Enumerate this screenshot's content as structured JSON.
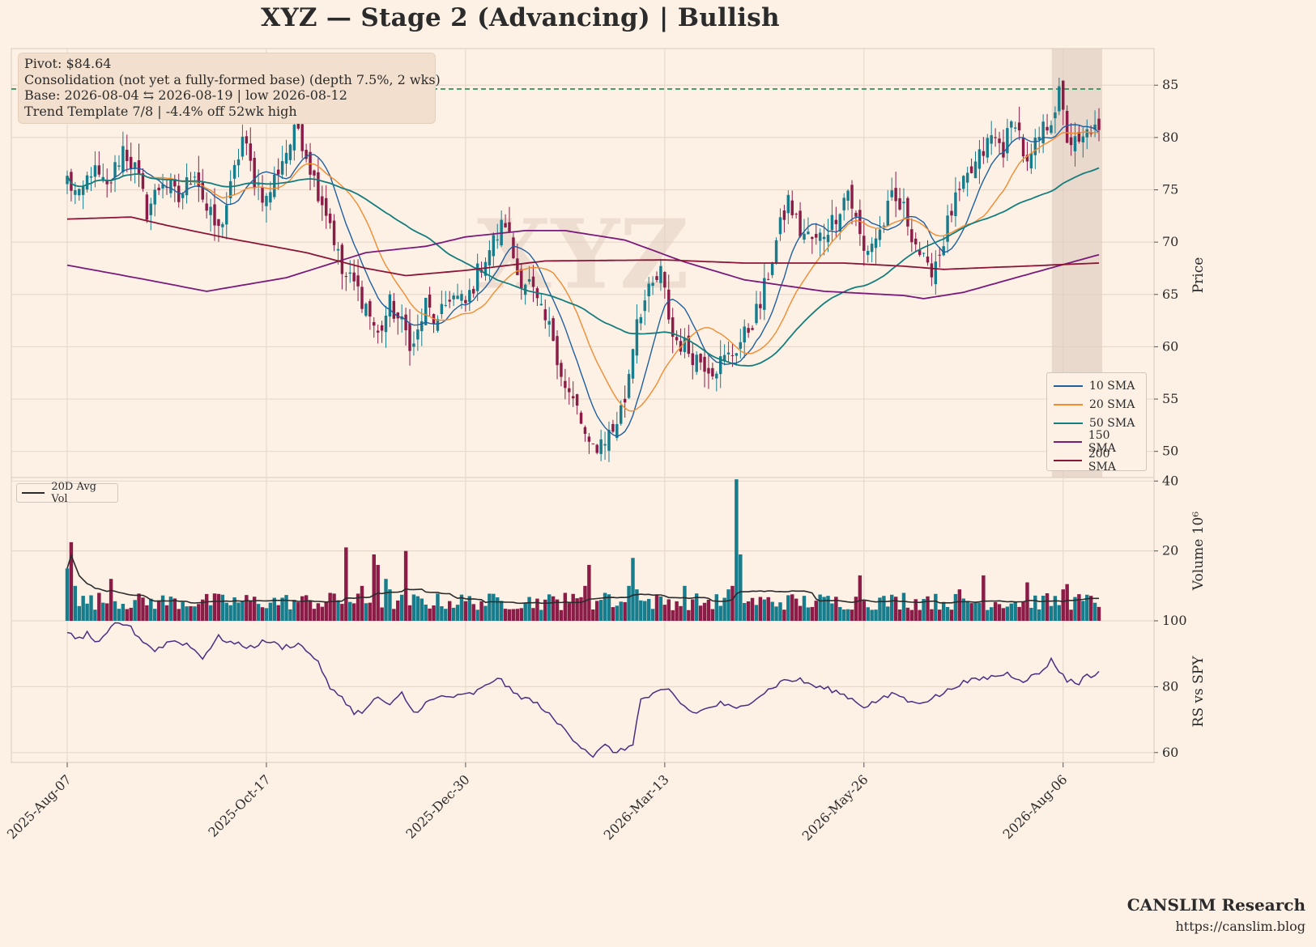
{
  "title": "XYZ  —  Stage 2 (Advancing)  |  Bullish",
  "watermark": "XYZ",
  "info": {
    "line1": "Pivot: $84.64",
    "line2": "Consolidation (not yet a fully-formed base)  (depth 7.5%, 2 wks)",
    "line3": "Base: 2026-08-04 ⇆ 2026-08-19  |  low 2026-08-12",
    "line4": "Trend Template 7/8  |  -4.4% off 52wk high"
  },
  "brand": {
    "name": "CANSLIM Research",
    "url": "https://canslim.blog"
  },
  "colors": {
    "background": "#fdf1e6",
    "grid": "#e6d9cc",
    "up": "#177c8c",
    "down": "#8a1c47",
    "sma10": "#1f5f9e",
    "sma20": "#f28b30",
    "sma50": "#147d7d",
    "sma150": "#7a1a7a",
    "sma200": "#8c1436",
    "avgvol": "#2b2b2b",
    "rs": "#4b2e83",
    "pivot": "#1e8c4e",
    "base_shade": "#dfcdc0"
  },
  "chart_data": [
    {
      "id": "price",
      "type": "candlestick",
      "ylabel": "Price",
      "ylim": [
        47.5,
        88.5
      ],
      "yticks": [
        50,
        55,
        60,
        65,
        70,
        75,
        80,
        85
      ],
      "x_tick_labels": [
        "2025-Aug-07",
        "2025-Oct-17",
        "2025-Dec-30",
        "2026-Mar-13",
        "2026-May-26",
        "2026-Aug-06"
      ],
      "x_tick_index": [
        0,
        50,
        100,
        150,
        200,
        250
      ],
      "n_bars": 260,
      "pivot": 84.64,
      "base_shade_index": [
        248,
        259
      ],
      "anchors": [
        [
          0,
          76
        ],
        [
          3,
          74
        ],
        [
          6,
          77
        ],
        [
          10,
          75
        ],
        [
          14,
          79
        ],
        [
          17,
          77
        ],
        [
          20,
          73
        ],
        [
          24,
          76
        ],
        [
          28,
          74
        ],
        [
          32,
          77
        ],
        [
          35,
          73
        ],
        [
          38,
          71
        ],
        [
          41,
          75
        ],
        [
          44,
          80
        ],
        [
          47,
          76
        ],
        [
          50,
          74
        ],
        [
          54,
          78
        ],
        [
          58,
          81
        ],
        [
          62,
          76
        ],
        [
          66,
          72
        ],
        [
          69,
          67
        ],
        [
          72,
          66
        ],
        [
          75,
          64
        ],
        [
          78,
          61
        ],
        [
          81,
          64
        ],
        [
          84,
          62
        ],
        [
          87,
          60
        ],
        [
          90,
          64
        ],
        [
          93,
          62
        ],
        [
          96,
          65
        ],
        [
          100,
          64
        ],
        [
          104,
          68
        ],
        [
          107,
          70
        ],
        [
          110,
          72
        ],
        [
          113,
          67
        ],
        [
          116,
          66
        ],
        [
          119,
          63
        ],
        [
          122,
          61
        ],
        [
          125,
          56
        ],
        [
          128,
          54
        ],
        [
          131,
          50
        ],
        [
          134,
          51
        ],
        [
          137,
          52
        ],
        [
          140,
          55
        ],
        [
          143,
          63
        ],
        [
          146,
          65
        ],
        [
          149,
          67
        ],
        [
          152,
          61
        ],
        [
          155,
          60
        ],
        [
          158,
          59
        ],
        [
          162,
          58
        ],
        [
          166,
          59
        ],
        [
          170,
          61
        ],
        [
          174,
          64
        ],
        [
          178,
          70
        ],
        [
          181,
          74
        ],
        [
          184,
          71
        ],
        [
          188,
          70
        ],
        [
          192,
          72
        ],
        [
          196,
          75
        ],
        [
          200,
          69
        ],
        [
          204,
          71
        ],
        [
          207,
          74
        ],
        [
          210,
          73
        ],
        [
          213,
          70
        ],
        [
          216,
          67
        ],
        [
          219,
          69
        ],
        [
          222,
          73
        ],
        [
          226,
          76
        ],
        [
          229,
          78
        ],
        [
          232,
          80
        ],
        [
          235,
          79
        ],
        [
          238,
          82
        ],
        [
          241,
          77
        ],
        [
          244,
          80
        ],
        [
          247,
          82
        ],
        [
          249,
          84
        ],
        [
          251,
          80
        ],
        [
          254,
          79
        ],
        [
          257,
          81
        ],
        [
          259,
          80
        ]
      ],
      "series": [
        {
          "name": "10 SMA",
          "period": 10
        },
        {
          "name": "20 SMA",
          "period": 20
        },
        {
          "name": "50 SMA",
          "period": 50
        },
        {
          "name": "150 SMA",
          "points": [
            [
              0,
              67.8
            ],
            [
              20,
              66.4
            ],
            [
              35,
              65.3
            ],
            [
              55,
              66.6
            ],
            [
              75,
              69
            ],
            [
              90,
              69.6
            ],
            [
              100,
              70.5
            ],
            [
              115,
              71.1
            ],
            [
              125,
              71.1
            ],
            [
              140,
              70.2
            ],
            [
              155,
              68.1
            ],
            [
              170,
              66.4
            ],
            [
              190,
              65.3
            ],
            [
              210,
              64.9
            ],
            [
              215,
              64.6
            ],
            [
              225,
              65.2
            ],
            [
              240,
              66.8
            ],
            [
              259,
              68.8
            ]
          ]
        },
        {
          "name": "200 SMA",
          "points": [
            [
              0,
              72.2
            ],
            [
              16,
              72.4
            ],
            [
              25,
              71.6
            ],
            [
              40,
              70.4
            ],
            [
              60,
              69
            ],
            [
              75,
              67.5
            ],
            [
              85,
              66.8
            ],
            [
              100,
              67.3
            ],
            [
              120,
              68.2
            ],
            [
              150,
              68.3
            ],
            [
              170,
              68
            ],
            [
              195,
              68
            ],
            [
              210,
              67.7
            ],
            [
              220,
              67.4
            ],
            [
              240,
              67.7
            ],
            [
              259,
              68
            ]
          ]
        }
      ],
      "legend": [
        "10 SMA",
        "20 SMA",
        "50 SMA",
        "150 SMA",
        "200 SMA"
      ]
    },
    {
      "id": "volume",
      "type": "bar",
      "ylabel": "Volume",
      "scale_label": "10⁶",
      "ylim": [
        0,
        41
      ],
      "yticks": [
        20,
        40
      ],
      "typical_volume": 5.5,
      "spikes": [
        [
          0,
          15
        ],
        [
          1,
          22.5
        ],
        [
          2,
          10
        ],
        [
          8,
          8
        ],
        [
          11,
          12
        ],
        [
          66,
          8
        ],
        [
          70,
          21
        ],
        [
          74,
          10
        ],
        [
          77,
          19
        ],
        [
          78,
          16
        ],
        [
          80,
          12
        ],
        [
          81,
          9
        ],
        [
          85,
          20
        ],
        [
          125,
          8
        ],
        [
          130,
          10
        ],
        [
          131,
          16
        ],
        [
          135,
          8
        ],
        [
          141,
          10
        ],
        [
          142,
          18
        ],
        [
          143,
          9
        ],
        [
          155,
          10
        ],
        [
          166,
          9
        ],
        [
          167,
          10
        ],
        [
          168,
          40.5
        ],
        [
          169,
          19
        ],
        [
          199,
          13
        ],
        [
          210,
          8
        ],
        [
          216,
          7
        ],
        [
          224,
          9
        ],
        [
          230,
          13
        ],
        [
          241,
          11
        ],
        [
          250,
          9
        ],
        [
          251,
          10.5
        ]
      ],
      "avg_series": {
        "name": "20D Avg Vol"
      }
    },
    {
      "id": "rs",
      "type": "line",
      "ylabel": "RS vs SPY",
      "ylim": [
        57,
        100
      ],
      "yticks": [
        60,
        80,
        100
      ],
      "series": [
        {
          "name": "RS vs SPY",
          "points": [
            [
              0,
              97
            ],
            [
              2,
              94
            ],
            [
              5,
              96
            ],
            [
              8,
              93
            ],
            [
              12,
              99
            ],
            [
              15,
              99
            ],
            [
              18,
              95
            ],
            [
              22,
              91
            ],
            [
              26,
              94
            ],
            [
              30,
              93
            ],
            [
              34,
              89
            ],
            [
              38,
              95
            ],
            [
              42,
              93
            ],
            [
              46,
              92
            ],
            [
              50,
              94
            ],
            [
              54,
              92
            ],
            [
              58,
              93
            ],
            [
              62,
              89
            ],
            [
              64,
              85
            ],
            [
              66,
              79
            ],
            [
              69,
              77
            ],
            [
              72,
              72
            ],
            [
              75,
              73
            ],
            [
              78,
              77
            ],
            [
              81,
              74
            ],
            [
              84,
              78
            ],
            [
              87,
              72
            ],
            [
              90,
              75
            ],
            [
              94,
              77
            ],
            [
              98,
              77
            ],
            [
              102,
              78
            ],
            [
              105,
              80
            ],
            [
              108,
              83
            ],
            [
              112,
              78
            ],
            [
              116,
              76
            ],
            [
              119,
              74
            ],
            [
              122,
              70
            ],
            [
              125,
              67
            ],
            [
              128,
              63
            ],
            [
              132,
              59
            ],
            [
              135,
              62
            ],
            [
              138,
              60
            ],
            [
              140,
              61
            ],
            [
              142,
              63
            ],
            [
              144,
              76
            ],
            [
              148,
              78
            ],
            [
              151,
              79
            ],
            [
              154,
              75
            ],
            [
              157,
              72
            ],
            [
              160,
              73
            ],
            [
              164,
              75
            ],
            [
              168,
              73
            ],
            [
              172,
              76
            ],
            [
              176,
              79
            ],
            [
              180,
              82
            ],
            [
              184,
              82
            ],
            [
              188,
              80
            ],
            [
              192,
              79
            ],
            [
              196,
              77
            ],
            [
              200,
              74
            ],
            [
              204,
              76
            ],
            [
              208,
              78
            ],
            [
              212,
              75
            ],
            [
              216,
              76
            ],
            [
              220,
              78
            ],
            [
              224,
              81
            ],
            [
              228,
              82
            ],
            [
              232,
              83
            ],
            [
              236,
              84
            ],
            [
              240,
              82
            ],
            [
              244,
              84
            ],
            [
              247,
              88
            ],
            [
              249,
              85
            ],
            [
              251,
              82
            ],
            [
              254,
              81
            ],
            [
              256,
              84
            ],
            [
              258,
              83
            ],
            [
              259,
              84
            ]
          ]
        }
      ]
    }
  ]
}
